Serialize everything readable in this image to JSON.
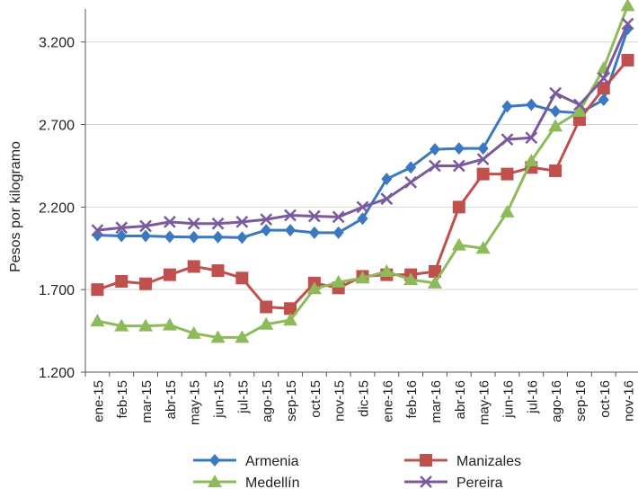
{
  "chart_data": {
    "type": "line",
    "ylabel": "Pesos por kilogramo",
    "xlabel": "",
    "ylim": [
      1200,
      3400
    ],
    "yticks": [
      1200,
      1700,
      2200,
      2700,
      3200
    ],
    "ytick_labels": [
      "1.200",
      "1.700",
      "2.200",
      "2.700",
      "3.200"
    ],
    "grid": true,
    "legend_position": "bottom",
    "categories": [
      "ene-15",
      "feb-15",
      "mar-15",
      "abr-15",
      "may-15",
      "jun-15",
      "jul-15",
      "ago-15",
      "sep-15",
      "oct-15",
      "nov-15",
      "dic-15",
      "ene-16",
      "feb-16",
      "mar-16",
      "abr-16",
      "may-16",
      "jun-16",
      "jul-16",
      "ago-16",
      "sep-16",
      "oct-16",
      "nov-16"
    ],
    "series": [
      {
        "name": "Armenia",
        "color": "#3a78bf",
        "marker": "diamond",
        "values": [
          2030,
          2025,
          2025,
          2020,
          2018,
          2018,
          2015,
          2060,
          2060,
          2045,
          2045,
          2130,
          2370,
          2440,
          2550,
          2555,
          2555,
          2810,
          2820,
          2780,
          2770,
          2850,
          3280
        ]
      },
      {
        "name": "Manizales",
        "color": "#c0504d",
        "marker": "square",
        "values": [
          1700,
          1750,
          1735,
          1790,
          1840,
          1815,
          1770,
          1595,
          1585,
          1740,
          1710,
          1780,
          1790,
          1790,
          1810,
          2200,
          2400,
          2400,
          2440,
          2420,
          2730,
          2920,
          3090
        ]
      },
      {
        "name": "Medellín",
        "color": "#8dbb5a",
        "marker": "triangle",
        "values": [
          1510,
          1480,
          1480,
          1485,
          1435,
          1410,
          1410,
          1490,
          1515,
          1705,
          1745,
          1770,
          1810,
          1760,
          1740,
          1970,
          1950,
          2170,
          2480,
          2690,
          2780,
          3040,
          3420
        ]
      },
      {
        "name": "Pereira",
        "color": "#7a5a9e",
        "marker": "x",
        "values": [
          2060,
          2075,
          2085,
          2110,
          2100,
          2100,
          2110,
          2125,
          2150,
          2145,
          2140,
          2200,
          2250,
          2350,
          2450,
          2450,
          2490,
          2610,
          2620,
          2890,
          2820,
          2980,
          3310
        ]
      }
    ]
  }
}
